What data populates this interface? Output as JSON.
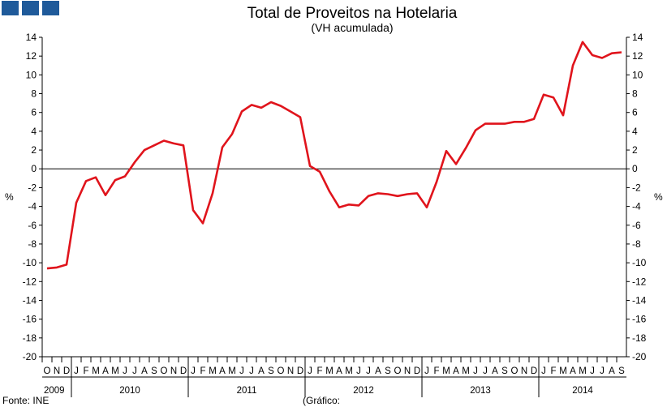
{
  "chart_data": {
    "type": "line",
    "title": "Total de Proveitos na Hotelaria",
    "subtitle": "(VH acumulada)",
    "ylabel_left": "%",
    "ylabel_right": "%",
    "ylim": [
      -20,
      14
    ],
    "yticks": [
      14,
      12,
      10,
      8,
      6,
      4,
      2,
      0,
      -2,
      -4,
      -6,
      -8,
      -10,
      -12,
      -14,
      -16,
      -18,
      -20
    ],
    "grid": false,
    "legend": "none",
    "month_labels": [
      "O",
      "N",
      "D",
      "J",
      "F",
      "M",
      "A",
      "M",
      "J",
      "J",
      "A",
      "S",
      "O",
      "N",
      "D",
      "J",
      "F",
      "M",
      "A",
      "M",
      "J",
      "J",
      "A",
      "S",
      "O",
      "N",
      "D",
      "J",
      "F",
      "M",
      "A",
      "M",
      "J",
      "J",
      "A",
      "S",
      "O",
      "N",
      "D",
      "J",
      "F",
      "M",
      "A",
      "M",
      "J",
      "J",
      "A",
      "S",
      "O",
      "N",
      "D",
      "J",
      "F",
      "M",
      "A",
      "M",
      "J",
      "J",
      "A",
      "S"
    ],
    "year_labels": [
      {
        "label": "2009",
        "months": 3
      },
      {
        "label": "2010",
        "months": 12
      },
      {
        "label": "2011",
        "months": 12
      },
      {
        "label": "2012",
        "months": 12
      },
      {
        "label": "2013",
        "months": 12
      },
      {
        "label": "2014",
        "months": 9
      }
    ],
    "series": [
      {
        "color": "#e0141c",
        "values": [
          -10.6,
          -10.5,
          -10.2,
          -3.6,
          -1.3,
          -0.9,
          -2.8,
          -1.2,
          -0.8,
          0.7,
          2.0,
          2.5,
          3.0,
          2.7,
          2.5,
          -4.4,
          -5.8,
          -2.6,
          2.3,
          3.7,
          6.1,
          6.8,
          6.5,
          7.1,
          6.7,
          6.1,
          5.5,
          0.3,
          -0.3,
          -2.4,
          -4.1,
          -3.8,
          -3.9,
          -2.9,
          -2.6,
          -2.7,
          -2.9,
          -2.7,
          -2.6,
          -4.1,
          -1.4,
          1.9,
          0.5,
          2.2,
          4.1,
          4.8,
          4.8,
          4.8,
          5.0,
          5.0,
          5.3,
          7.9,
          7.6,
          5.7,
          11.0,
          13.5,
          12.1,
          11.8,
          12.3,
          12.4
        ]
      }
    ]
  },
  "logo": {
    "name": "ine-logo"
  },
  "footer": {
    "source": "Fonte: INE",
    "graphic": "(Gráfico:"
  }
}
